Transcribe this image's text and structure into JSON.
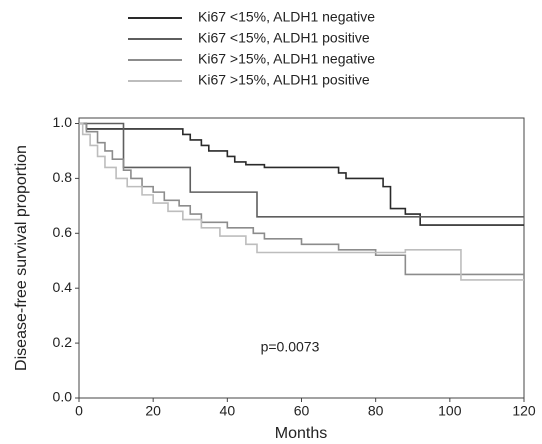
{
  "chart_data": {
    "type": "line",
    "step": "post",
    "xlabel": "Months",
    "ylabel": "Disease-free survival proportion",
    "annotation": "p=0.0073",
    "xlim": [
      0,
      120
    ],
    "ylim": [
      0,
      1.02
    ],
    "xticks": [
      0,
      20,
      40,
      60,
      80,
      100,
      120
    ],
    "yticks": [
      {
        "value": 0,
        "label": "0.0"
      },
      0.2,
      0.4,
      0.6,
      0.8,
      {
        "value": 1,
        "label": "1.0"
      }
    ],
    "series": [
      {
        "name": "Ki67 <15%,  ALDH1 negative",
        "color": "#2a2a2a",
        "x": [
          0,
          2,
          28,
          30,
          33,
          35,
          40,
          42,
          45,
          50,
          70,
          72,
          80,
          82,
          84,
          88,
          92,
          120
        ],
        "values": [
          1,
          0.98,
          0.96,
          0.94,
          0.92,
          0.9,
          0.88,
          0.86,
          0.85,
          0.84,
          0.82,
          0.8,
          0.8,
          0.77,
          0.69,
          0.67,
          0.63,
          0.63
        ]
      },
      {
        "name": "Ki67 <15%,  ALDH1 positive",
        "color": "#5e5e5e",
        "x": [
          0,
          12,
          30,
          48,
          120
        ],
        "values": [
          1,
          0.84,
          0.75,
          0.66,
          0.66
        ]
      },
      {
        "name": "Ki67 >15%,  ALDH1 negative",
        "color": "#8c8c8c",
        "x": [
          0,
          2,
          5,
          7,
          9,
          12,
          14,
          17,
          20,
          23,
          27,
          30,
          33,
          40,
          47,
          50,
          60,
          70,
          80,
          88,
          120
        ],
        "values": [
          1,
          0.97,
          0.93,
          0.9,
          0.87,
          0.83,
          0.8,
          0.77,
          0.75,
          0.72,
          0.7,
          0.67,
          0.64,
          0.62,
          0.6,
          0.58,
          0.56,
          0.54,
          0.52,
          0.45,
          0.45
        ]
      },
      {
        "name": "Ki67 >15%,  ALDH1 positive",
        "color": "#bdbdbd",
        "x": [
          0,
          1,
          3,
          5,
          7,
          10,
          13,
          17,
          20,
          24,
          28,
          33,
          38,
          45,
          48,
          88,
          103,
          120
        ],
        "values": [
          1,
          0.96,
          0.92,
          0.88,
          0.84,
          0.8,
          0.77,
          0.74,
          0.71,
          0.68,
          0.65,
          0.62,
          0.59,
          0.56,
          0.53,
          0.54,
          0.43,
          0.43
        ]
      }
    ]
  }
}
